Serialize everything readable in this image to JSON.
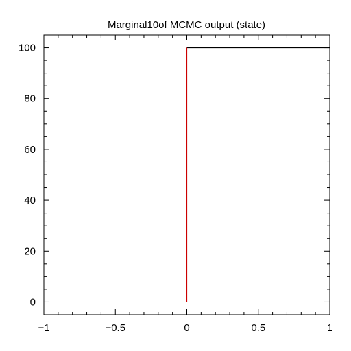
{
  "chart_data": {
    "type": "line",
    "title": "Marginal10of MCMC output (state)",
    "xlabel": "",
    "ylabel": "",
    "xlim": [
      -1,
      1
    ],
    "ylim": [
      -5,
      105
    ],
    "x_ticks": [
      -1,
      -0.5,
      0,
      0.5,
      1
    ],
    "x_tick_labels": [
      "−1",
      "−0.5",
      "0",
      "0.5",
      "1"
    ],
    "x_minor_step": 0.1,
    "y_ticks": [
      0,
      20,
      40,
      60,
      80,
      100
    ],
    "y_tick_labels": [
      "0",
      "20",
      "40",
      "60",
      "80",
      "100"
    ],
    "y_minor_step": 5,
    "grid": false,
    "series": [
      {
        "color": "#000000",
        "points": [
          [
            0,
            100
          ],
          [
            1,
            100
          ]
        ]
      },
      {
        "color": "#cc0000",
        "points": [
          [
            0,
            0
          ],
          [
            0,
            100
          ]
        ]
      }
    ]
  }
}
